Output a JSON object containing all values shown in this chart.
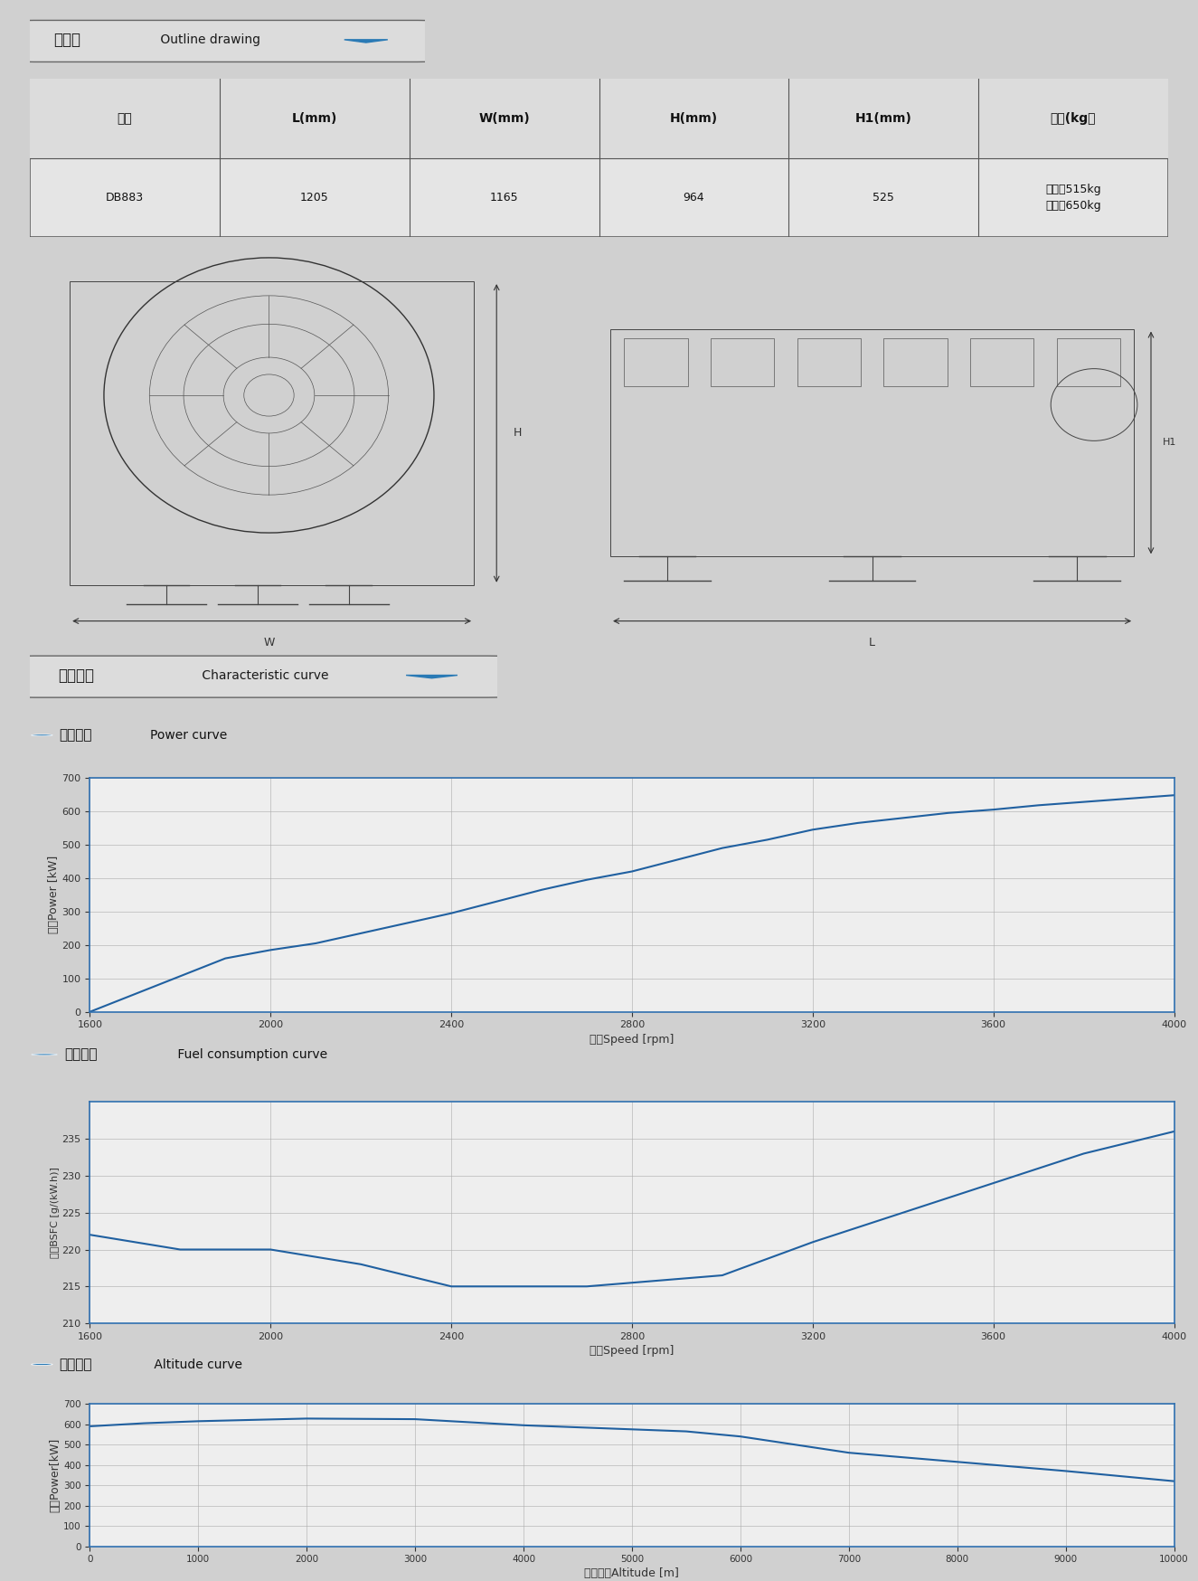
{
  "page_bg": "#d0d0d0",
  "section_bg": "#e8e8e8",
  "section_border": "#888888",
  "section1_title_zh": "外形图",
  "section1_title_en": " Outline drawing",
  "table_headers": [
    "型号",
    "L(mm)",
    "W(mm)",
    "H(mm)",
    "H1(mm)",
    "干重(kg）"
  ],
  "table_row_1": [
    "DB883",
    "1205",
    "1165",
    "964",
    "525",
    "航空版515kg\n地面版650kg"
  ],
  "section2_title_zh": "特性曲线",
  "section2_title_en": " Characteristic curve",
  "power_title_zh": "功率曲线",
  "power_title_en": "Power curve",
  "power_xlabel": "转速Speed [rpm]",
  "power_ylabel": "功率Power [kW]",
  "power_xdata": [
    1600,
    1900,
    2000,
    2100,
    2200,
    2300,
    2400,
    2500,
    2600,
    2700,
    2800,
    2900,
    3000,
    3100,
    3200,
    3300,
    3400,
    3500,
    3600,
    3700,
    3800,
    4000
  ],
  "power_ydata": [
    0,
    160,
    185,
    205,
    235,
    265,
    295,
    330,
    365,
    395,
    420,
    455,
    490,
    515,
    545,
    565,
    580,
    595,
    605,
    618,
    628,
    648
  ],
  "power_xlim": [
    1600,
    4000
  ],
  "power_ylim": [
    0,
    700
  ],
  "power_xticks": [
    1600,
    2000,
    2400,
    2800,
    3200,
    3600,
    4000
  ],
  "power_yticks": [
    0,
    100,
    200,
    300,
    400,
    500,
    600,
    700
  ],
  "fuel_title_zh": "油耗曲线",
  "fuel_title_en": " Fuel consumption curve",
  "fuel_xlabel": "转速Speed [rpm]",
  "fuel_ylabel": "油耗BSFC [g/(kW.h)]",
  "fuel_xdata": [
    1600,
    1800,
    2000,
    2200,
    2400,
    2600,
    2700,
    2800,
    3000,
    3200,
    3400,
    3600,
    3800,
    4000
  ],
  "fuel_ydata": [
    222,
    220,
    220,
    218,
    215,
    215,
    215,
    215.5,
    216.5,
    221,
    225,
    229,
    233,
    236
  ],
  "fuel_xlim": [
    1600,
    4000
  ],
  "fuel_ylim": [
    210,
    240
  ],
  "fuel_xticks": [
    1600,
    2000,
    2400,
    2800,
    3200,
    3600,
    4000
  ],
  "fuel_yticks": [
    210,
    215,
    220,
    225,
    230,
    235
  ],
  "alt_title_zh": "海拔曲线",
  "alt_title_en": " Altitude curve",
  "alt_xlabel": "海拔高度Altitude [m]",
  "alt_ylabel": "功率Power[kW]",
  "alt_xdata": [
    0,
    500,
    1000,
    2000,
    3000,
    4000,
    5000,
    5500,
    6000,
    7000,
    8000,
    9000,
    10000
  ],
  "alt_ydata": [
    590,
    605,
    615,
    628,
    625,
    595,
    575,
    565,
    540,
    460,
    415,
    370,
    320
  ],
  "alt_xlim": [
    0,
    10000
  ],
  "alt_ylim": [
    0,
    700
  ],
  "alt_xticks": [
    0,
    1000,
    2000,
    3000,
    4000,
    5000,
    6000,
    7000,
    8000,
    9000,
    10000
  ],
  "alt_yticks": [
    0,
    100,
    200,
    300,
    400,
    500,
    600,
    700
  ],
  "curve_color": "#2060a0",
  "curve_linewidth": 1.5,
  "grid_color": "#aaaaaa",
  "chart_bg": "#eeeeee",
  "chart_border_color": "#3070b0",
  "chart_border_lw": 1.2,
  "bullet_color": "#2a7ab5",
  "triangle_color": "#2a7ab5",
  "title_fontsize": 11,
  "label_fontsize": 9,
  "tick_fontsize": 8,
  "section_label_zh_size": 12,
  "section_label_en_size": 10
}
